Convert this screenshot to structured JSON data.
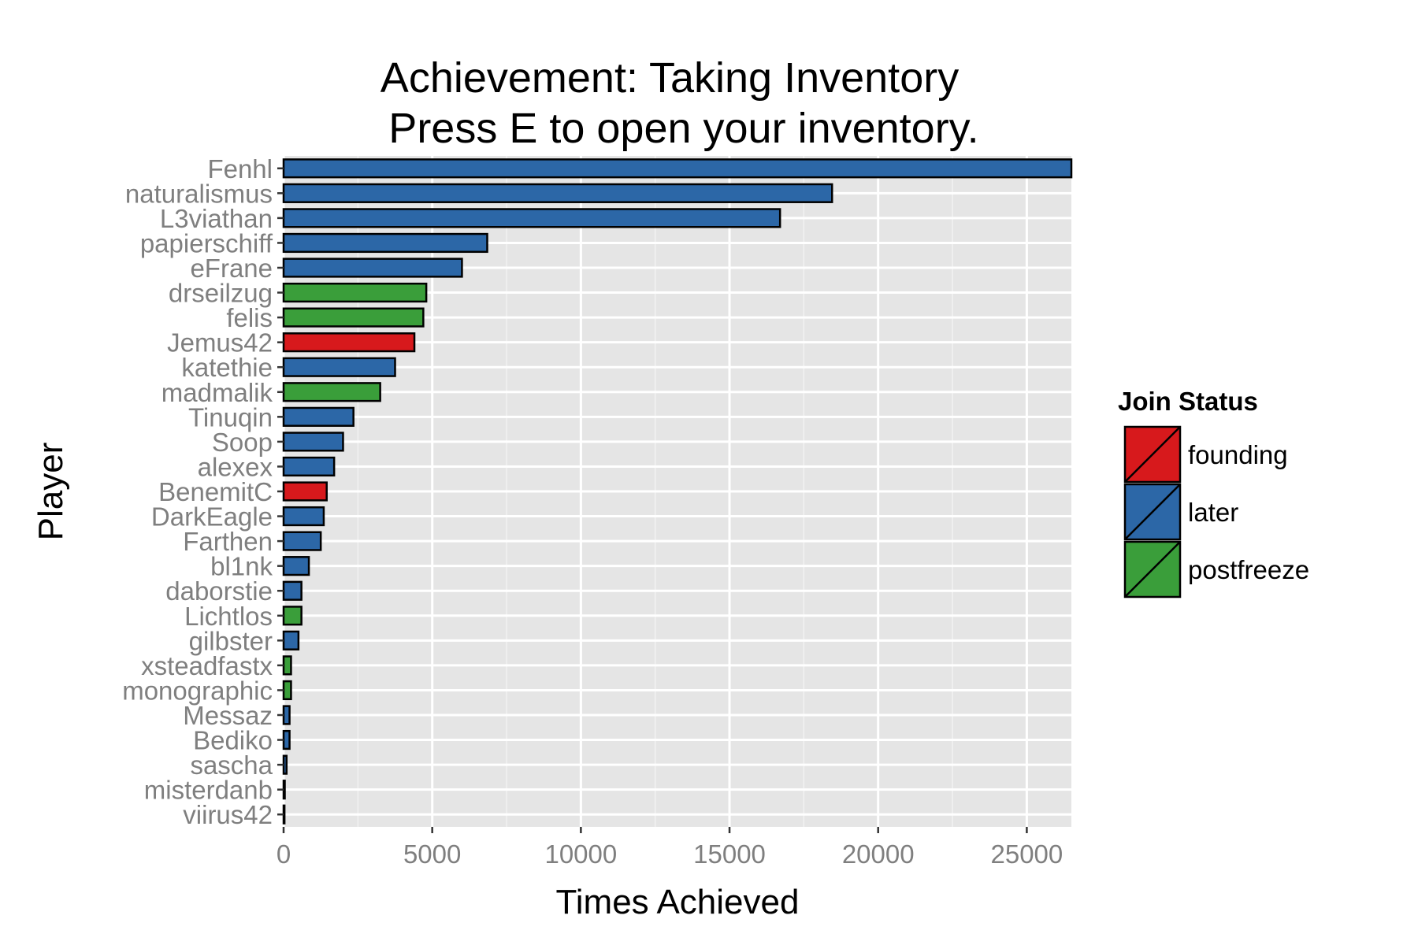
{
  "chart_data": {
    "type": "bar",
    "orientation": "horizontal",
    "title": "Achievement: Taking Inventory",
    "subtitle": "Press E to open your inventory.",
    "xlabel": "Times Achieved",
    "ylabel": "Player",
    "xlim": [
      0,
      26500
    ],
    "x_ticks": [
      0,
      5000,
      10000,
      15000,
      20000,
      25000
    ],
    "grid": true,
    "legend": {
      "title": "Join Status",
      "position": "right",
      "entries": [
        {
          "label": "founding",
          "color": "#d7191c"
        },
        {
          "label": "later",
          "color": "#2c67a7"
        },
        {
          "label": "postfreeze",
          "color": "#3a9e3a"
        }
      ]
    },
    "categories": [
      "Fenhl",
      "naturalismus",
      "L3viathan",
      "papierschiff",
      "eFrane",
      "drseilzug",
      "felis",
      "Jemus42",
      "katethie",
      "madmalik",
      "Tinuqin",
      "Soop",
      "alexex",
      "BenemitC",
      "DarkEagle",
      "Farthen",
      "bl1nk",
      "daborstie",
      "Lichtlos",
      "gilbster",
      "xsteadfastx",
      "monographic",
      "Messaz",
      "Bediko",
      "sascha",
      "misterdanb",
      "viirus42"
    ],
    "values": [
      26500,
      18450,
      16700,
      6850,
      6000,
      4800,
      4700,
      4400,
      3750,
      3250,
      2350,
      2000,
      1700,
      1450,
      1350,
      1250,
      850,
      600,
      600,
      500,
      250,
      250,
      200,
      200,
      100,
      40,
      30
    ],
    "groups": [
      "later",
      "later",
      "later",
      "later",
      "later",
      "postfreeze",
      "postfreeze",
      "founding",
      "later",
      "postfreeze",
      "later",
      "later",
      "later",
      "founding",
      "later",
      "later",
      "later",
      "later",
      "postfreeze",
      "later",
      "postfreeze",
      "postfreeze",
      "later",
      "later",
      "later",
      "later",
      "later"
    ]
  }
}
